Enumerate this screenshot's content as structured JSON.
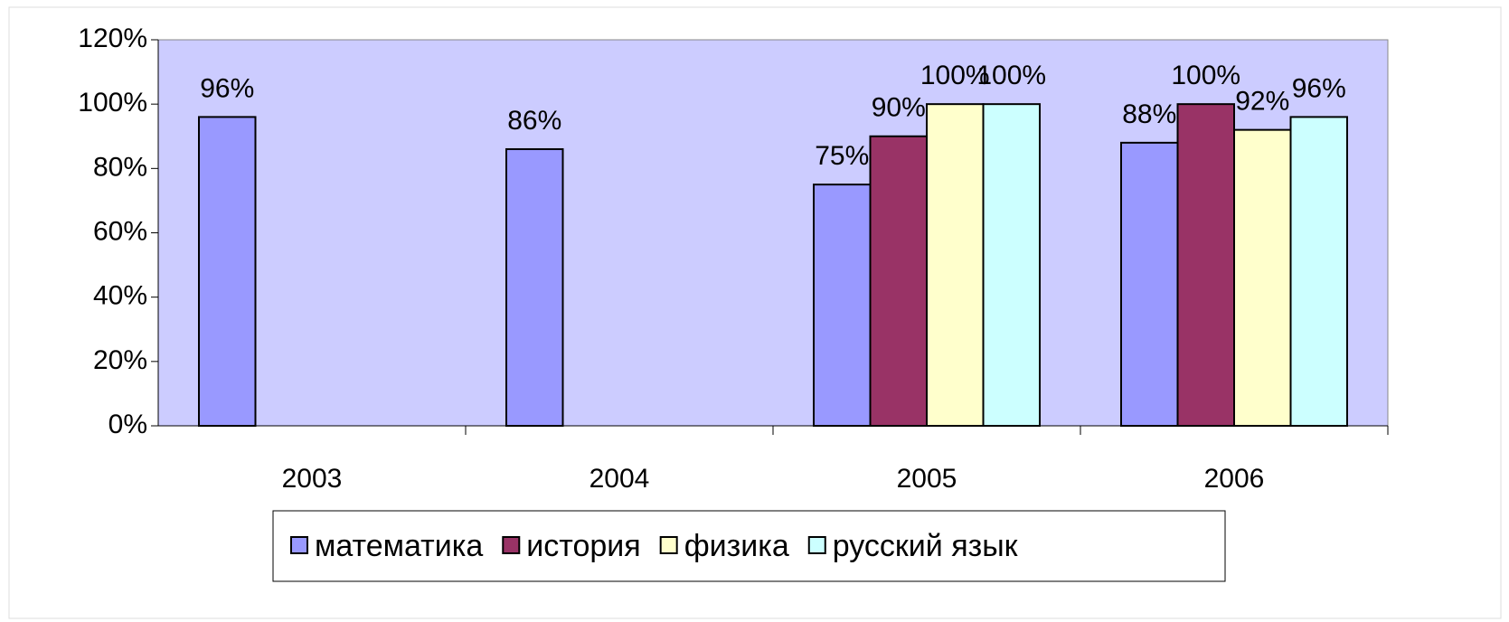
{
  "chart_data": {
    "type": "bar",
    "categories": [
      "2003",
      "2004",
      "2005",
      "2006"
    ],
    "series": [
      {
        "name": "математика",
        "color": "#9999ff",
        "values": [
          96,
          86,
          75,
          88
        ],
        "value_labels": [
          "96%",
          "86%",
          "75%",
          "88%"
        ]
      },
      {
        "name": "история",
        "color": "#993366",
        "values": [
          null,
          null,
          90,
          100
        ],
        "value_labels": [
          null,
          null,
          "90%",
          "100%"
        ]
      },
      {
        "name": "физика",
        "color": "#ffffcc",
        "values": [
          null,
          null,
          100,
          92
        ],
        "value_labels": [
          null,
          null,
          "100%",
          "92%"
        ]
      },
      {
        "name": "русский язык",
        "color": "#ccffff",
        "values": [
          null,
          null,
          100,
          96
        ],
        "value_labels": [
          null,
          null,
          "100%",
          "96%"
        ]
      }
    ],
    "ylim": [
      0,
      120
    ],
    "yticks": [
      {
        "value": 0,
        "label": "0%"
      },
      {
        "value": 20,
        "label": "20%"
      },
      {
        "value": 40,
        "label": "40%"
      },
      {
        "value": 60,
        "label": "60%"
      },
      {
        "value": 80,
        "label": "80%"
      },
      {
        "value": 100,
        "label": "100%"
      },
      {
        "value": 120,
        "label": "120%"
      }
    ],
    "legend": "bottom",
    "plot_background": "#ccccff"
  }
}
